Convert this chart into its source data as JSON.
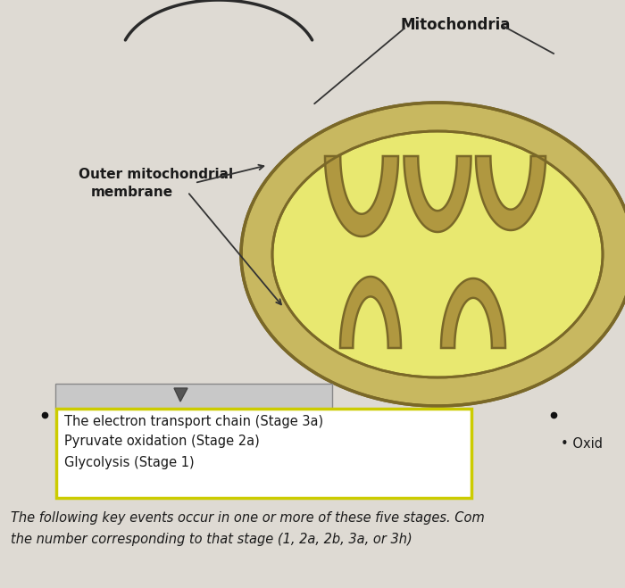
{
  "bg_color": "#dedad3",
  "mito_outer_color": "#c8b860",
  "mito_inner_color": "#e8e870",
  "mito_cristae_color": "#b09840",
  "mito_outline_color": "#7a6828",
  "label_mitochondria": "Mitochondria",
  "label_outer_membrane_1": "Outer mitochondrial",
  "label_outer_membrane_2": "membrane",
  "dropdown_items": [
    "The electron transport chain (Stage 3a)",
    "Pyruvate oxidation (Stage 2a)",
    "Glycolysis (Stage 1)"
  ],
  "bullet_right_text": "• Oxid",
  "bottom_text_line1": "The following key events occur in one or more of these five stages. Com",
  "bottom_text_line2": "the number corresponding to that stage (1, 2a, 2b, 3a, or 3h)",
  "dropdown_border_color": "#cccc00",
  "dropdown_bg_color": "#ffffff",
  "text_color": "#1a1a1a",
  "arrow_color": "#333333"
}
